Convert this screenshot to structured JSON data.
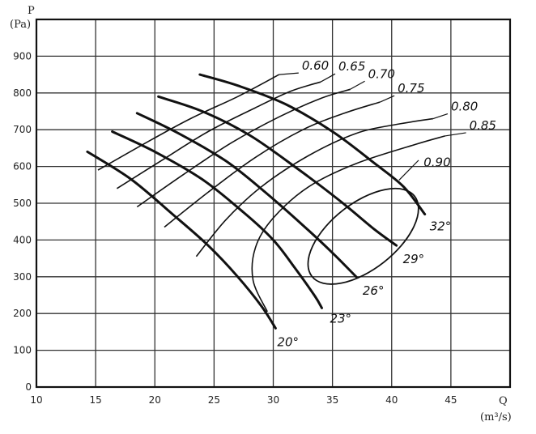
{
  "chart_data": {
    "type": "line",
    "title": "",
    "x_axis": {
      "label": "Q",
      "unit": "(m³/s)",
      "range": [
        10,
        50
      ],
      "ticks": [
        10,
        15,
        20,
        25,
        30,
        35,
        40,
        45
      ]
    },
    "y_axis": {
      "label": "P",
      "unit": "(Pa)",
      "range": [
        0,
        1000
      ],
      "ticks": [
        0,
        100,
        200,
        300,
        400,
        500,
        600,
        700,
        800,
        900
      ]
    },
    "grid": true,
    "blade_angle_curves": [
      {
        "label": "20°",
        "points": [
          [
            14.3,
            640
          ],
          [
            18,
            565
          ],
          [
            21.5,
            470
          ],
          [
            24.5,
            385
          ],
          [
            27,
            300
          ],
          [
            29,
            220
          ],
          [
            30.2,
            160
          ]
        ]
      },
      {
        "label": "23°",
        "points": [
          [
            16.4,
            695
          ],
          [
            20,
            640
          ],
          [
            24,
            565
          ],
          [
            27.5,
            475
          ],
          [
            30,
            400
          ],
          [
            31.8,
            325
          ],
          [
            33.5,
            248
          ],
          [
            34.1,
            215
          ]
        ]
      },
      {
        "label": "26°",
        "points": [
          [
            18.5,
            745
          ],
          [
            22,
            690
          ],
          [
            26,
            615
          ],
          [
            29.5,
            525
          ],
          [
            32.5,
            440
          ],
          [
            35,
            365
          ],
          [
            37,
            300
          ]
        ]
      },
      {
        "label": "29°",
        "points": [
          [
            20.3,
            790
          ],
          [
            24,
            750
          ],
          [
            28,
            685
          ],
          [
            32,
            595
          ],
          [
            35.5,
            510
          ],
          [
            38.5,
            430
          ],
          [
            40.4,
            385
          ]
        ]
      },
      {
        "label": "32°",
        "points": [
          [
            23.8,
            850
          ],
          [
            27,
            820
          ],
          [
            31,
            770
          ],
          [
            35,
            695
          ],
          [
            38.5,
            610
          ],
          [
            41,
            545
          ],
          [
            42.8,
            470
          ]
        ]
      }
    ],
    "efficiency_curves": [
      {
        "label": "0.60",
        "points": [
          [
            15.2,
            590
          ],
          [
            19,
            660
          ],
          [
            23,
            730
          ],
          [
            27,
            790
          ],
          [
            30.5,
            850
          ]
        ]
      },
      {
        "label": "0.65",
        "points": [
          [
            16.8,
            540
          ],
          [
            20.5,
            615
          ],
          [
            24.5,
            695
          ],
          [
            28.5,
            760
          ],
          [
            31.5,
            805
          ],
          [
            34,
            830
          ]
        ]
      },
      {
        "label": "0.70",
        "points": [
          [
            18.5,
            490
          ],
          [
            22.5,
            580
          ],
          [
            26.5,
            665
          ],
          [
            30.5,
            735
          ],
          [
            34,
            785
          ],
          [
            36.5,
            810
          ]
        ]
      },
      {
        "label": "0.75",
        "points": [
          [
            20.8,
            435
          ],
          [
            24.5,
            530
          ],
          [
            28.5,
            625
          ],
          [
            32.5,
            700
          ],
          [
            36,
            745
          ],
          [
            39,
            775
          ]
        ]
      },
      {
        "label": "0.80",
        "points": [
          [
            23.5,
            355
          ],
          [
            26,
            455
          ],
          [
            29,
            545
          ],
          [
            33,
            630
          ],
          [
            37,
            690
          ],
          [
            40.5,
            715
          ],
          [
            43.5,
            730
          ]
        ]
      },
      {
        "label": "0.85",
        "points": [
          [
            29.5,
            205
          ],
          [
            28.3,
            290
          ],
          [
            28.5,
            380
          ],
          [
            30,
            460
          ],
          [
            33,
            545
          ],
          [
            37,
            608
          ],
          [
            42,
            660
          ],
          [
            44.5,
            683
          ]
        ]
      }
    ],
    "efficiency_ellipse": {
      "label": "0.90",
      "center": [
        37.6,
        410
      ],
      "rx_q": 5.5,
      "ry_p": 90,
      "rotation_deg": -38
    }
  }
}
